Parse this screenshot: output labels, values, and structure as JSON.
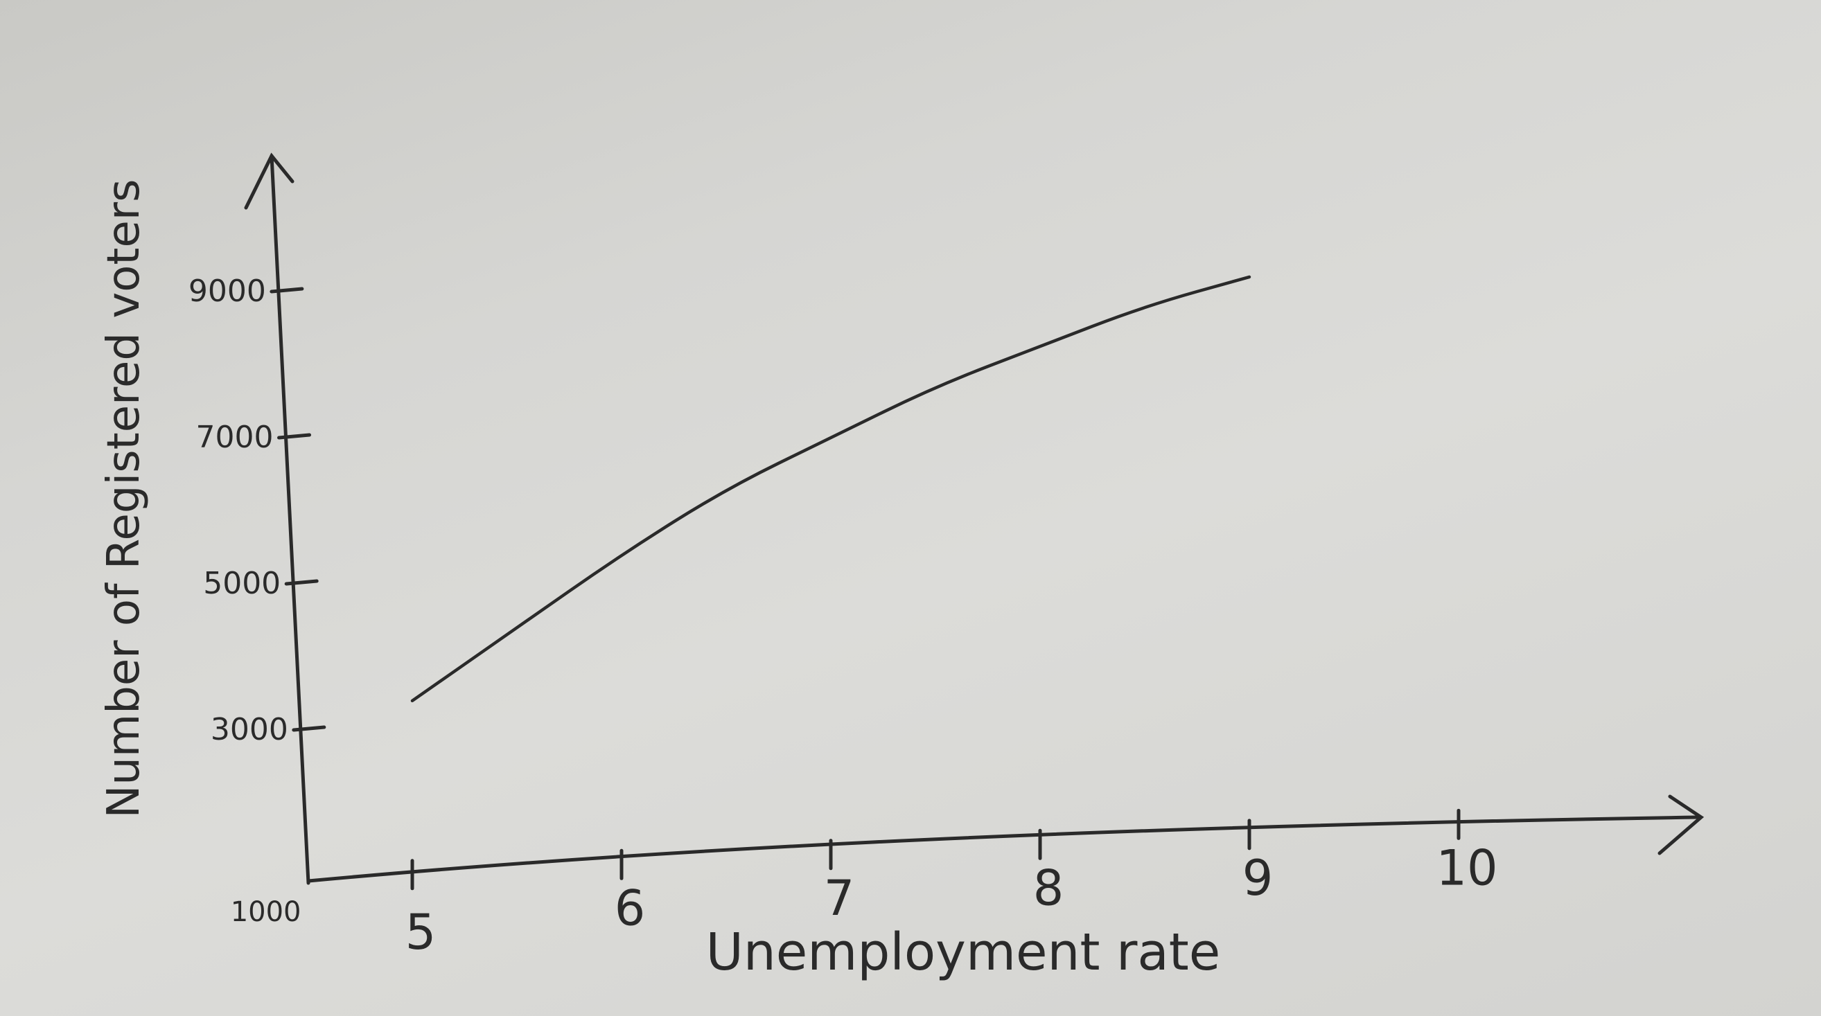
{
  "chart_data": {
    "type": "line",
    "title": "",
    "xlabel": "Unemployment rate",
    "ylabel": "Number of Registered voters",
    "x_ticks": [
      "5",
      "6",
      "7",
      "8",
      "9",
      "10"
    ],
    "y_ticks": [
      "1000",
      "3000",
      "5000",
      "7000",
      "9000"
    ],
    "xlim": [
      4.5,
      11
    ],
    "ylim": [
      1000,
      10500
    ],
    "grid": false,
    "legend": "none",
    "series": [
      {
        "x": [
          5,
          5.5,
          6,
          6.5,
          7,
          7.5,
          8,
          8.5,
          9
        ],
        "y": [
          3400,
          4400,
          5400,
          6300,
          7000,
          7700,
          8250,
          8800,
          9200
        ]
      }
    ]
  },
  "colors": {
    "ink": "#2a2a2a",
    "paper": "#d8d8d5"
  }
}
